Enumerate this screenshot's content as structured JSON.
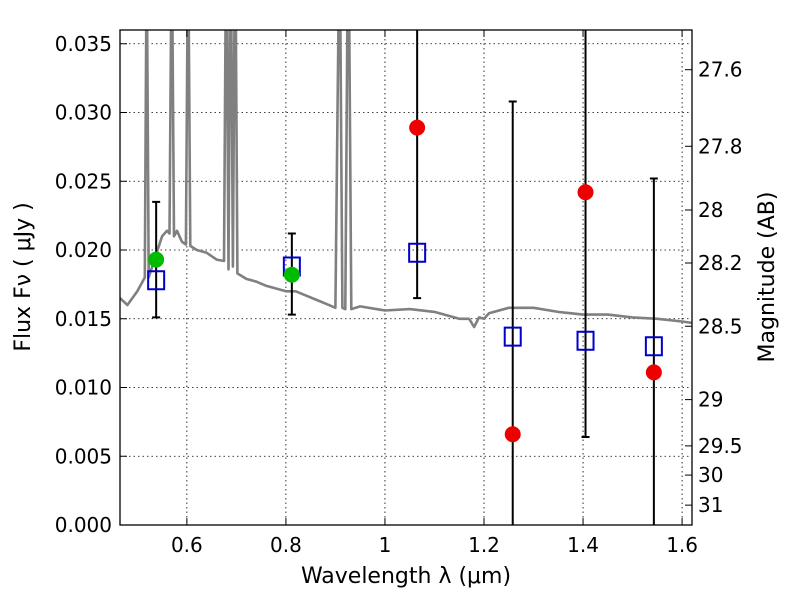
{
  "chart_data": {
    "type": "scatter",
    "title": "",
    "xlabel": "Wavelength  λ (μm)",
    "ylabel": "Flux  Fν  ( μJy )",
    "y2label": "Magnitude (AB)",
    "xlim": [
      0.465,
      1.62
    ],
    "ylim": [
      0.0,
      0.036
    ],
    "grid": true,
    "x_ticks": [
      0.6,
      0.8,
      1.0,
      1.2,
      1.4,
      1.6
    ],
    "x_tick_labels": [
      "0.6",
      "0.8",
      "1",
      "1.2",
      "1.4",
      "1.6"
    ],
    "y_ticks": [
      0.0,
      0.005,
      0.01,
      0.015,
      0.02,
      0.025,
      0.03,
      0.035
    ],
    "y_tick_labels": [
      "0.000",
      "0.005",
      "0.010",
      "0.015",
      "0.020",
      "0.025",
      "0.030",
      "0.035"
    ],
    "mag_ticks": [
      27.6,
      27.8,
      28,
      28.2,
      28.5,
      29,
      29.5,
      30,
      31
    ],
    "mag_tick_labels": [
      "27.6",
      "27.8",
      "28",
      "28.2",
      "28.5",
      "29",
      "29.5",
      "30",
      "31"
    ],
    "series": [
      {
        "name": "model_spectrum",
        "kind": "line",
        "color": "#808080",
        "points": [
          [
            0.465,
            0.0165
          ],
          [
            0.48,
            0.016
          ],
          [
            0.5,
            0.017
          ],
          [
            0.515,
            0.018
          ],
          [
            0.518,
            0.036
          ],
          [
            0.52,
            0.036
          ],
          [
            0.523,
            0.018
          ],
          [
            0.53,
            0.0188
          ],
          [
            0.54,
            0.0199
          ],
          [
            0.55,
            0.021
          ],
          [
            0.56,
            0.0214
          ],
          [
            0.565,
            0.0212
          ],
          [
            0.568,
            0.036
          ],
          [
            0.571,
            0.036
          ],
          [
            0.574,
            0.021
          ],
          [
            0.58,
            0.0214
          ],
          [
            0.59,
            0.0206
          ],
          [
            0.598,
            0.0204
          ],
          [
            0.601,
            0.036
          ],
          [
            0.604,
            0.036
          ],
          [
            0.607,
            0.0203
          ],
          [
            0.62,
            0.02
          ],
          [
            0.64,
            0.0198
          ],
          [
            0.66,
            0.0193
          ],
          [
            0.675,
            0.0192
          ],
          [
            0.678,
            0.036
          ],
          [
            0.681,
            0.036
          ],
          [
            0.684,
            0.0186
          ],
          [
            0.687,
            0.036
          ],
          [
            0.69,
            0.036
          ],
          [
            0.693,
            0.0188
          ],
          [
            0.696,
            0.036
          ],
          [
            0.699,
            0.036
          ],
          [
            0.702,
            0.0183
          ],
          [
            0.72,
            0.0179
          ],
          [
            0.74,
            0.0177
          ],
          [
            0.76,
            0.0174
          ],
          [
            0.78,
            0.0172
          ],
          [
            0.8,
            0.017
          ],
          [
            0.82,
            0.017
          ],
          [
            0.84,
            0.0167
          ],
          [
            0.86,
            0.0164
          ],
          [
            0.88,
            0.0161
          ],
          [
            0.9,
            0.0158
          ],
          [
            0.906,
            0.036
          ],
          [
            0.91,
            0.036
          ],
          [
            0.914,
            0.0158
          ],
          [
            0.92,
            0.0157
          ],
          [
            0.924,
            0.036
          ],
          [
            0.928,
            0.036
          ],
          [
            0.932,
            0.0157
          ],
          [
            0.95,
            0.0159
          ],
          [
            1.0,
            0.0156
          ],
          [
            1.05,
            0.0157
          ],
          [
            1.1,
            0.0155
          ],
          [
            1.15,
            0.015
          ],
          [
            1.17,
            0.015
          ],
          [
            1.18,
            0.0144
          ],
          [
            1.19,
            0.0151
          ],
          [
            1.2,
            0.015
          ],
          [
            1.21,
            0.0154
          ],
          [
            1.25,
            0.0158
          ],
          [
            1.3,
            0.0158
          ],
          [
            1.35,
            0.0155
          ],
          [
            1.4,
            0.0153
          ],
          [
            1.45,
            0.0153
          ],
          [
            1.5,
            0.0151
          ],
          [
            1.55,
            0.015
          ],
          [
            1.6,
            0.0148
          ],
          [
            1.62,
            0.0147
          ]
        ]
      },
      {
        "name": "model_photometry",
        "kind": "open-square",
        "color": "#0000cc",
        "x": [
          0.538,
          0.812,
          1.065,
          1.258,
          1.405,
          1.543
        ],
        "y": [
          0.0178,
          0.0188,
          0.0198,
          0.0137,
          0.0134,
          0.013
        ]
      },
      {
        "name": "observed_hst",
        "kind": "dot",
        "color": "#ee0000",
        "x": [
          1.065,
          1.258,
          1.405,
          1.543
        ],
        "y": [
          0.0289,
          0.0066,
          0.0242,
          0.0111
        ],
        "yerr_low": [
          0.0165,
          0.0,
          0.0064,
          0.0
        ],
        "yerr_high": [
          0.036,
          0.0308,
          0.036,
          0.0252
        ]
      },
      {
        "name": "observed_ground",
        "kind": "dot",
        "color": "#00bb00",
        "x": [
          0.538,
          0.812
        ],
        "y": [
          0.0193,
          0.0182
        ],
        "yerr_low": [
          0.0151,
          0.0153
        ],
        "yerr_high": [
          0.0235,
          0.0212
        ]
      }
    ]
  }
}
